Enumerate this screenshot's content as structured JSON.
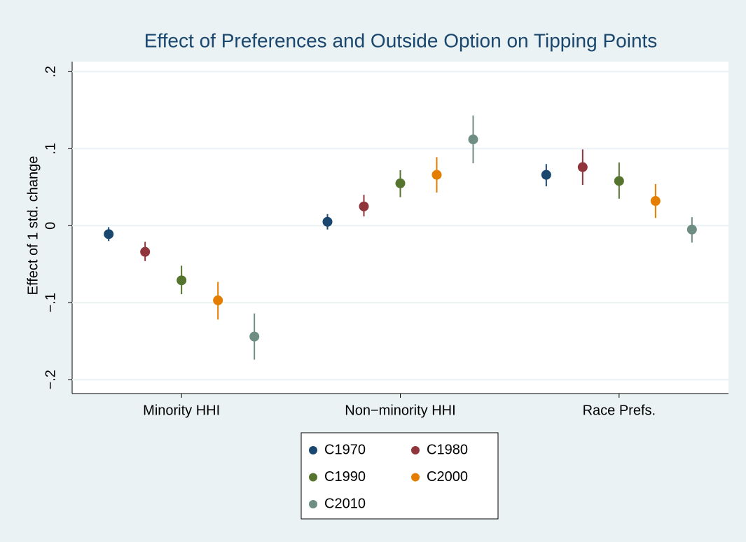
{
  "chart_data": {
    "type": "dot_errorbar",
    "title": "Effect of Preferences and Outside Option on Tipping Points",
    "y_label": "Effect of 1 std. change",
    "categories": [
      "Minority HHI",
      "Non−minority HHI",
      "Race Prefs."
    ],
    "ylim": [
      -0.218,
      0.213
    ],
    "yticks": [
      {
        "value": -0.2,
        "label": "−.2"
      },
      {
        "value": -0.1,
        "label": "−.1"
      },
      0,
      {
        "value": 0.1,
        "label": ".1"
      },
      {
        "value": 0.2,
        "label": ".2"
      }
    ],
    "grid": true,
    "legend": "bottom",
    "series": [
      {
        "name": "C1970",
        "color": "#1a476f",
        "values": [
          -0.011,
          0.005,
          0.066
        ],
        "lower": [
          -0.02,
          -0.005,
          0.051
        ],
        "upper": [
          -0.002,
          0.015,
          0.08
        ]
      },
      {
        "name": "C1980",
        "color": "#90353b",
        "values": [
          -0.034,
          0.025,
          0.076
        ],
        "lower": [
          -0.046,
          0.012,
          0.053
        ],
        "upper": [
          -0.021,
          0.04,
          0.099
        ]
      },
      {
        "name": "C1990",
        "color": "#55752f",
        "values": [
          -0.071,
          0.055,
          0.058
        ],
        "lower": [
          -0.089,
          0.037,
          0.035
        ],
        "upper": [
          -0.052,
          0.072,
          0.082
        ]
      },
      {
        "name": "C2000",
        "color": "#e37e00",
        "values": [
          -0.097,
          0.066,
          0.032
        ],
        "lower": [
          -0.122,
          0.043,
          0.01
        ],
        "upper": [
          -0.073,
          0.089,
          0.054
        ]
      },
      {
        "name": "C2010",
        "color": "#6e8e84",
        "values": [
          -0.144,
          0.112,
          -0.005
        ],
        "lower": [
          -0.174,
          0.081,
          -0.022
        ],
        "upper": [
          -0.114,
          0.143,
          0.011
        ]
      }
    ]
  }
}
